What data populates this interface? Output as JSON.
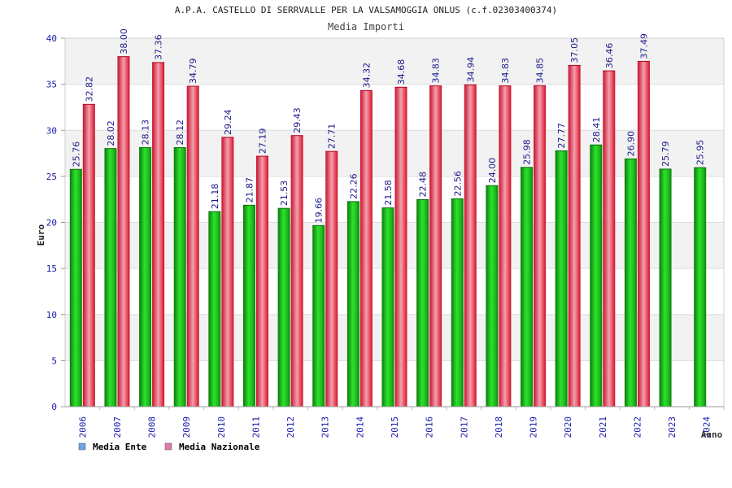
{
  "chart_data": {
    "type": "bar",
    "title": "A.P.A. CASTELLO DI SERRVALLE PER LA VALSAMOGGIA ONLUS (c.f.02303400374)",
    "subtitle": "Media Importi",
    "xlabel": "Anno",
    "ylabel": "Euro",
    "ylim": [
      0,
      40
    ],
    "ytick_step": 5,
    "grid": true,
    "legend_position": "bottom-left",
    "categories": [
      "2006",
      "2007",
      "2008",
      "2009",
      "2010",
      "2011",
      "2012",
      "2013",
      "2014",
      "2015",
      "2016",
      "2017",
      "2018",
      "2019",
      "2020",
      "2021",
      "2022",
      "2023",
      "2024"
    ],
    "series": [
      {
        "name": "Media Ente",
        "color": "#18b818",
        "legend_color": "#6aa6e8",
        "values": [
          25.76,
          28.02,
          28.13,
          28.12,
          21.18,
          21.87,
          21.53,
          19.66,
          22.26,
          21.58,
          22.48,
          22.56,
          24.0,
          25.98,
          27.77,
          28.41,
          26.9,
          25.79,
          25.95
        ],
        "labels": [
          "25.76",
          "28.02",
          "28.13",
          "28.12",
          "21.18",
          "21.87",
          "21.53",
          "19.66",
          "22.26",
          "21.58",
          "22.48",
          "22.56",
          "24.00",
          "25.98",
          "27.77",
          "28.41",
          "26.90",
          "25.79",
          "25.95"
        ]
      },
      {
        "name": "Media Nazionale",
        "color": "#e8283c",
        "legend_color": "#e07aa8",
        "values": [
          32.82,
          38.0,
          37.36,
          34.79,
          29.24,
          27.19,
          29.43,
          27.71,
          34.32,
          34.68,
          34.83,
          34.94,
          34.83,
          34.85,
          37.05,
          36.46,
          37.49,
          null,
          null
        ],
        "labels": [
          "32.82",
          "38.00",
          "37.36",
          "34.79",
          "29.24",
          "27.19",
          "29.43",
          "27.71",
          "34.32",
          "34.68",
          "34.83",
          "34.94",
          "34.83",
          "34.85",
          "37.05",
          "36.46",
          "37.49",
          null,
          null
        ]
      }
    ]
  }
}
